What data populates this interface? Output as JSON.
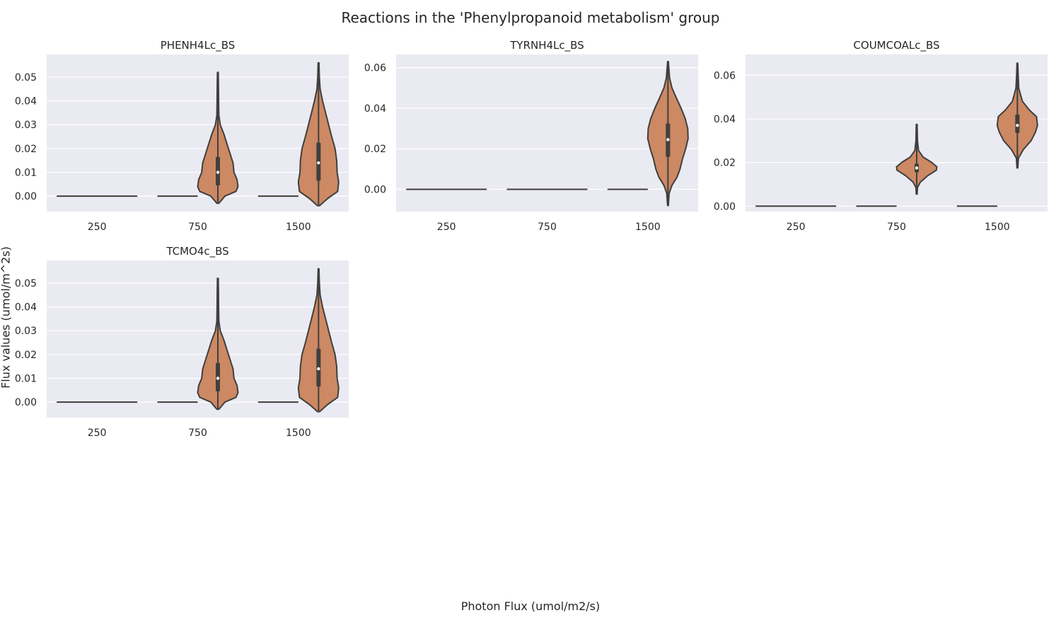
{
  "figure": {
    "title": "Reactions in the 'Phenylpropanoid metabolism' group",
    "xlabel": "Photon Flux (umol/m2/s)",
    "ylabel": "Flux values (umol/m^2s)"
  },
  "colors": {
    "panel_bg": "#eaeaf2",
    "grid": "#ffffff",
    "violin_fill": "#cc8963",
    "violin_edge": "#3f3f3f",
    "text": "#262626"
  },
  "chart_data": [
    {
      "type": "violin",
      "title": "PHENH4Lc_BS",
      "categories": [
        "250",
        "750",
        "1500"
      ],
      "yticks": [
        "0.00",
        "0.01",
        "0.02",
        "0.03",
        "0.04",
        "0.05"
      ],
      "ylim": [
        -0.0065,
        0.0595
      ],
      "grid": true,
      "groups": [
        {
          "x": "250",
          "constant": 0.0
        },
        {
          "x": "750",
          "zero_line": true,
          "min": -0.003,
          "max": 0.052,
          "q1": 0.0045,
          "median": 0.01,
          "q3": 0.0165,
          "profile": [
            [
              -0.003,
              0.05
            ],
            [
              0.0,
              0.35
            ],
            [
              0.002,
              0.9
            ],
            [
              0.004,
              1.0
            ],
            [
              0.007,
              0.95
            ],
            [
              0.01,
              0.8
            ],
            [
              0.014,
              0.75
            ],
            [
              0.018,
              0.6
            ],
            [
              0.022,
              0.45
            ],
            [
              0.026,
              0.3
            ],
            [
              0.03,
              0.12
            ],
            [
              0.034,
              0.05
            ],
            [
              0.04,
              0.04
            ],
            [
              0.046,
              0.03
            ],
            [
              0.052,
              0.02
            ]
          ]
        },
        {
          "x": "1500",
          "zero_line": true,
          "min": -0.004,
          "max": 0.056,
          "q1": 0.0065,
          "median": 0.014,
          "q3": 0.0225,
          "profile": [
            [
              -0.004,
              0.05
            ],
            [
              -0.001,
              0.45
            ],
            [
              0.002,
              0.95
            ],
            [
              0.006,
              1.0
            ],
            [
              0.01,
              0.92
            ],
            [
              0.015,
              0.9
            ],
            [
              0.02,
              0.82
            ],
            [
              0.025,
              0.65
            ],
            [
              0.03,
              0.5
            ],
            [
              0.035,
              0.35
            ],
            [
              0.04,
              0.2
            ],
            [
              0.045,
              0.08
            ],
            [
              0.05,
              0.04
            ],
            [
              0.056,
              0.02
            ]
          ]
        }
      ]
    },
    {
      "type": "violin",
      "title": "TYRNH4Lc_BS",
      "categories": [
        "250",
        "750",
        "1500"
      ],
      "yticks": [
        "0.00",
        "0.02",
        "0.04",
        "0.06"
      ],
      "ylim": [
        -0.011,
        0.0665
      ],
      "grid": true,
      "groups": [
        {
          "x": "250",
          "constant": 0.0
        },
        {
          "x": "750",
          "constant": 0.0
        },
        {
          "x": "1500",
          "zero_line": true,
          "min": -0.008,
          "max": 0.063,
          "q1": 0.016,
          "median": 0.0245,
          "q3": 0.0325,
          "profile": [
            [
              -0.008,
              0.02
            ],
            [
              -0.002,
              0.06
            ],
            [
              0.002,
              0.2
            ],
            [
              0.006,
              0.45
            ],
            [
              0.01,
              0.6
            ],
            [
              0.015,
              0.72
            ],
            [
              0.02,
              0.88
            ],
            [
              0.025,
              1.0
            ],
            [
              0.03,
              0.98
            ],
            [
              0.035,
              0.85
            ],
            [
              0.04,
              0.65
            ],
            [
              0.045,
              0.42
            ],
            [
              0.05,
              0.2
            ],
            [
              0.055,
              0.08
            ],
            [
              0.06,
              0.04
            ],
            [
              0.063,
              0.02
            ]
          ]
        }
      ]
    },
    {
      "type": "violin",
      "title": "COUMCOALc_BS",
      "categories": [
        "250",
        "750",
        "1500"
      ],
      "yticks": [
        "0.00",
        "0.02",
        "0.04",
        "0.06"
      ],
      "ylim": [
        -0.0025,
        0.0695
      ],
      "grid": true,
      "groups": [
        {
          "x": "250",
          "constant": 0.0
        },
        {
          "x": "750",
          "zero_line": true,
          "min": 0.0055,
          "max": 0.0375,
          "q1": 0.0155,
          "median": 0.0175,
          "q3": 0.0195,
          "profile": [
            [
              0.0055,
              0.02
            ],
            [
              0.0085,
              0.04
            ],
            [
              0.011,
              0.18
            ],
            [
              0.014,
              0.55
            ],
            [
              0.0165,
              0.98
            ],
            [
              0.018,
              1.0
            ],
            [
              0.02,
              0.75
            ],
            [
              0.0225,
              0.32
            ],
            [
              0.0255,
              0.09
            ],
            [
              0.03,
              0.04
            ],
            [
              0.0375,
              0.02
            ]
          ]
        },
        {
          "x": "1500",
          "zero_line": true,
          "min": 0.0175,
          "max": 0.0655,
          "q1": 0.0335,
          "median": 0.037,
          "q3": 0.042,
          "profile": [
            [
              0.0175,
              0.02
            ],
            [
              0.022,
              0.05
            ],
            [
              0.026,
              0.3
            ],
            [
              0.03,
              0.68
            ],
            [
              0.034,
              0.9
            ],
            [
              0.037,
              1.0
            ],
            [
              0.041,
              0.95
            ],
            [
              0.044,
              0.6
            ],
            [
              0.048,
              0.25
            ],
            [
              0.054,
              0.07
            ],
            [
              0.06,
              0.04
            ],
            [
              0.0655,
              0.02
            ]
          ]
        }
      ]
    },
    {
      "type": "violin",
      "title": "TCMO4c_BS",
      "categories": [
        "250",
        "750",
        "1500"
      ],
      "yticks": [
        "0.00",
        "0.01",
        "0.02",
        "0.03",
        "0.04",
        "0.05"
      ],
      "ylim": [
        -0.0065,
        0.0595
      ],
      "grid": true,
      "groups": [
        {
          "x": "250",
          "constant": 0.0
        },
        {
          "x": "750",
          "zero_line": true,
          "min": -0.003,
          "max": 0.052,
          "q1": 0.0045,
          "median": 0.01,
          "q3": 0.0165,
          "profile": [
            [
              -0.003,
              0.05
            ],
            [
              0.0,
              0.35
            ],
            [
              0.002,
              0.9
            ],
            [
              0.004,
              1.0
            ],
            [
              0.007,
              0.95
            ],
            [
              0.01,
              0.8
            ],
            [
              0.014,
              0.75
            ],
            [
              0.018,
              0.6
            ],
            [
              0.022,
              0.45
            ],
            [
              0.026,
              0.3
            ],
            [
              0.03,
              0.12
            ],
            [
              0.034,
              0.05
            ],
            [
              0.04,
              0.04
            ],
            [
              0.046,
              0.03
            ],
            [
              0.052,
              0.02
            ]
          ]
        },
        {
          "x": "1500",
          "zero_line": true,
          "min": -0.004,
          "max": 0.056,
          "q1": 0.0065,
          "median": 0.014,
          "q3": 0.0225,
          "profile": [
            [
              -0.004,
              0.05
            ],
            [
              -0.001,
              0.45
            ],
            [
              0.002,
              0.95
            ],
            [
              0.006,
              1.0
            ],
            [
              0.01,
              0.92
            ],
            [
              0.015,
              0.9
            ],
            [
              0.02,
              0.82
            ],
            [
              0.025,
              0.65
            ],
            [
              0.03,
              0.5
            ],
            [
              0.035,
              0.35
            ],
            [
              0.04,
              0.2
            ],
            [
              0.045,
              0.08
            ],
            [
              0.05,
              0.04
            ],
            [
              0.056,
              0.02
            ]
          ]
        }
      ]
    }
  ]
}
